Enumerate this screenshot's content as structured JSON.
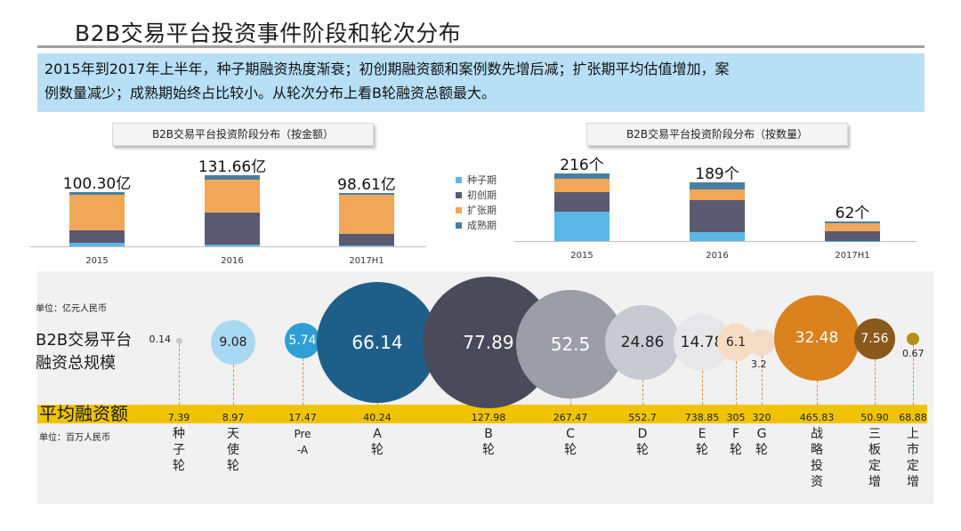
{
  "title": "B2B交易平台投资事件阶段和轮次分布",
  "summary": {
    "line1": "2015年到2017年上半年，种子期融资热度渐衰；初创期融资额和案例数先增后减；扩张期平均估值增加，案",
    "line2": "例数量减少；成熟期始终占比较小。从轮次分布上看B轮融资总额最大。"
  },
  "colors": {
    "seed": "#5bb8e6",
    "startup": "#5a5a72",
    "expansion": "#f0a858",
    "mature": "#4a7ea0",
    "gold": "#f0c300",
    "summary_bg": "#b7dff5"
  },
  "chart_data": [
    {
      "type": "bar",
      "title": "B2B交易平台投资阶段分布（按金额）",
      "categories": [
        "2015",
        "2016",
        "2017H1"
      ],
      "totals": [
        "100.30亿",
        "131.66亿",
        "98.61亿"
      ],
      "series": [
        {
          "name": "种子期",
          "values": [
            6,
            3,
            1
          ]
        },
        {
          "name": "初创期",
          "values": [
            24,
            60,
            22
          ]
        },
        {
          "name": "扩张期",
          "values": [
            66,
            60,
            73
          ]
        },
        {
          "name": "成熟期",
          "values": [
            4.3,
            8.66,
            2.61
          ]
        }
      ]
    },
    {
      "type": "bar",
      "title": "B2B交易平台投资阶段分布（按数量）",
      "categories": [
        "2015",
        "2016",
        "2017H1"
      ],
      "totals": [
        "216个",
        "189个",
        "62个"
      ],
      "series": [
        {
          "name": "种子期",
          "values": [
            95,
            28,
            1
          ]
        },
        {
          "name": "初创期",
          "values": [
            60,
            104,
            29
          ]
        },
        {
          "name": "扩张期",
          "values": [
            45,
            34,
            28
          ]
        },
        {
          "name": "成熟期",
          "values": [
            16,
            23,
            4
          ]
        }
      ]
    },
    {
      "type": "scatter",
      "title": "",
      "unit_total": "单位：亿元人民币",
      "unit_avg": "单位：百万人民币",
      "total_label_l1": "B2B交易平台",
      "total_label_l2": "融资总规模",
      "avg_label": "平均融资额",
      "rounds": [
        {
          "name": "种子轮",
          "total": "0.14",
          "avg": "7.39",
          "color": "#c9c9c9"
        },
        {
          "name": "天使轮",
          "total": "9.08",
          "avg": "8.97",
          "color": "#a9d8f2"
        },
        {
          "name": "Pre-A",
          "total": "5.74",
          "avg": "17.47",
          "color": "#2e9fd6"
        },
        {
          "name": "A轮",
          "total": "66.14",
          "avg": "40.24",
          "color": "#1e5f8a"
        },
        {
          "name": "B轮",
          "total": "77.89",
          "avg": "127.98",
          "color": "#4a4a5a"
        },
        {
          "name": "C轮",
          "total": "52.5",
          "avg": "267.47",
          "color": "#9d9daa"
        },
        {
          "name": "D轮",
          "total": "24.86",
          "avg": "552.7",
          "color": "#c9c9d2"
        },
        {
          "name": "E轮",
          "total": "14.78",
          "avg": "738.85",
          "color": "#e7e7ea"
        },
        {
          "name": "F轮",
          "total": "6.1",
          "avg": "305",
          "color": "#f6dcc2"
        },
        {
          "name": "G轮",
          "total": "3.2",
          "avg": "320",
          "color": "#f3ddc7"
        },
        {
          "name": "战略投资",
          "total": "32.48",
          "avg": "465.83",
          "color": "#d9821e"
        },
        {
          "name": "三板定增",
          "total": "7.56",
          "avg": "50.90",
          "color": "#8a5a1c"
        },
        {
          "name": "上市定增",
          "total": "0.67",
          "avg": "68.88",
          "color": "#b59215"
        }
      ]
    }
  ]
}
